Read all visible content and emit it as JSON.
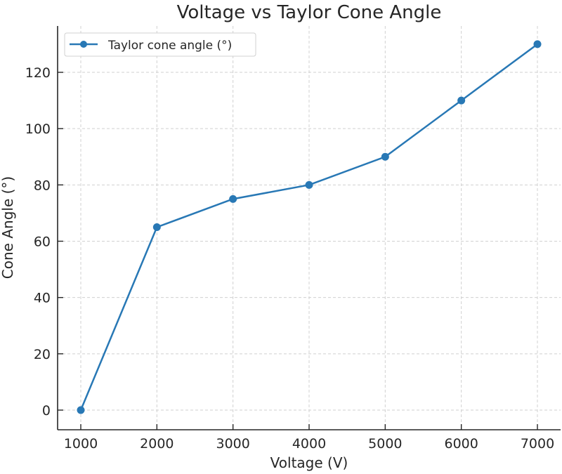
{
  "chart_data": {
    "type": "line",
    "title": "Voltage vs Taylor Cone Angle",
    "xlabel": "Voltage (V)",
    "ylabel": "Cone Angle (°)",
    "x": [
      1000,
      2000,
      3000,
      4000,
      5000,
      6000,
      7000
    ],
    "series": [
      {
        "name": "Taylor cone angle (°)",
        "values": [
          0,
          65,
          75,
          80,
          90,
          110,
          130
        ],
        "color": "#2878b5",
        "marker": "circle"
      }
    ],
    "xticks": [
      "1000",
      "2000",
      "3000",
      "4000",
      "5000",
      "6000",
      "7000"
    ],
    "yticks": [
      "0",
      "20",
      "40",
      "60",
      "80",
      "100",
      "120"
    ],
    "xlim": [
      700,
      7300
    ],
    "ylim": [
      -7,
      137
    ],
    "grid": true,
    "legend": "top-left"
  }
}
